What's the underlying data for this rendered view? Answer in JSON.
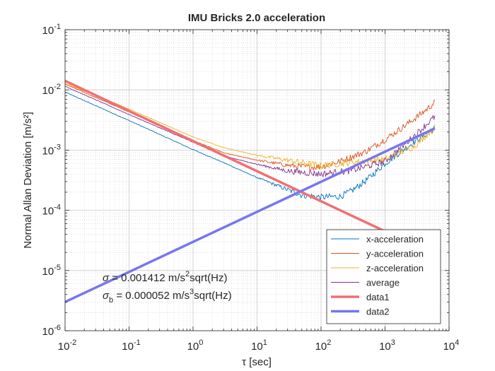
{
  "chart_data": {
    "type": "line",
    "title": "IMU Bricks 2.0 acceleration",
    "xlabel": "τ [sec]",
    "ylabel": "Normal Allan Deviation [m/s²]",
    "xscale": "log",
    "yscale": "log",
    "xlim": [
      0.01,
      10000
    ],
    "ylim": [
      1e-06,
      0.1
    ],
    "grid": true,
    "minor_grid": true,
    "legend_position": "bottom-right",
    "x_tick_labels": [
      {
        "base": "10",
        "exp": "-2"
      },
      {
        "base": "10",
        "exp": "-1"
      },
      {
        "base": "10",
        "exp": "0"
      },
      {
        "base": "10",
        "exp": "1"
      },
      {
        "base": "10",
        "exp": "2"
      },
      {
        "base": "10",
        "exp": "3"
      },
      {
        "base": "10",
        "exp": "4"
      }
    ],
    "y_tick_labels": [
      {
        "base": "10",
        "exp": "-6"
      },
      {
        "base": "10",
        "exp": "-5"
      },
      {
        "base": "10",
        "exp": "-4"
      },
      {
        "base": "10",
        "exp": "-3"
      },
      {
        "base": "10",
        "exp": "-2"
      },
      {
        "base": "10",
        "exp": "-1"
      }
    ],
    "series": [
      {
        "name": "x-acceleration",
        "color": "#0072BD",
        "line_width": "thin",
        "x": [
          0.01,
          0.1,
          1,
          3,
          10,
          30,
          50,
          100,
          200,
          300,
          500,
          1000,
          2000,
          4000,
          6000
        ],
        "y": [
          0.0092,
          0.0031,
          0.00102,
          0.00062,
          0.00035,
          0.00022,
          0.00018,
          0.000165,
          0.00017,
          0.00021,
          0.00031,
          0.0006,
          0.00105,
          0.00175,
          0.0023
        ]
      },
      {
        "name": "y-acceleration",
        "color": "#D95319",
        "line_width": "thin",
        "x": [
          0.01,
          0.1,
          1,
          3,
          10,
          30,
          60,
          100,
          200,
          500,
          1000,
          2000,
          4000,
          6000
        ],
        "y": [
          0.0125,
          0.0043,
          0.00145,
          0.0009,
          0.00068,
          0.00056,
          0.00052,
          0.00053,
          0.00065,
          0.00095,
          0.0015,
          0.0025,
          0.0043,
          0.0062
        ]
      },
      {
        "name": "z-acceleration",
        "color": "#EDB120",
        "line_width": "thin",
        "x": [
          0.01,
          0.1,
          1,
          3,
          10,
          30,
          100,
          300,
          1000,
          3000,
          6000
        ],
        "y": [
          0.0128,
          0.0048,
          0.00165,
          0.0011,
          0.00082,
          0.00068,
          0.00055,
          0.00063,
          0.0007,
          0.0012,
          0.0024
        ]
      },
      {
        "name": "average",
        "color": "#7E2F8E",
        "line_width": "thin",
        "x": [
          0.01,
          0.1,
          1,
          3,
          10,
          30,
          100,
          300,
          1000,
          3000,
          6000
        ],
        "y": [
          0.0115,
          0.0039,
          0.00135,
          0.0008,
          0.00058,
          0.00045,
          0.0004,
          0.00046,
          0.00065,
          0.0018,
          0.0036
        ]
      },
      {
        "name": "data1",
        "color": "#F07070",
        "line_width": "thick",
        "x": [
          0.01,
          1000,
          2000
        ],
        "y": [
          0.01412,
          4.47e-05,
          3.16e-05
        ]
      },
      {
        "name": "data2",
        "color": "#7777EE",
        "line_width": "thick",
        "x": [
          0.01,
          6000
        ],
        "y": [
          3e-06,
          0.0023
        ]
      }
    ],
    "annotations": [
      {
        "sym": "σ",
        "sub": "",
        "text_a": " = 0.001412 m/s",
        "sup": "2",
        "text_b": "sqrt(Hz)"
      },
      {
        "sym": "σ",
        "sub": "b",
        "text_a": " = 0.000052 m/s",
        "sup": "3",
        "text_b": "sqrt(Hz)"
      }
    ]
  }
}
